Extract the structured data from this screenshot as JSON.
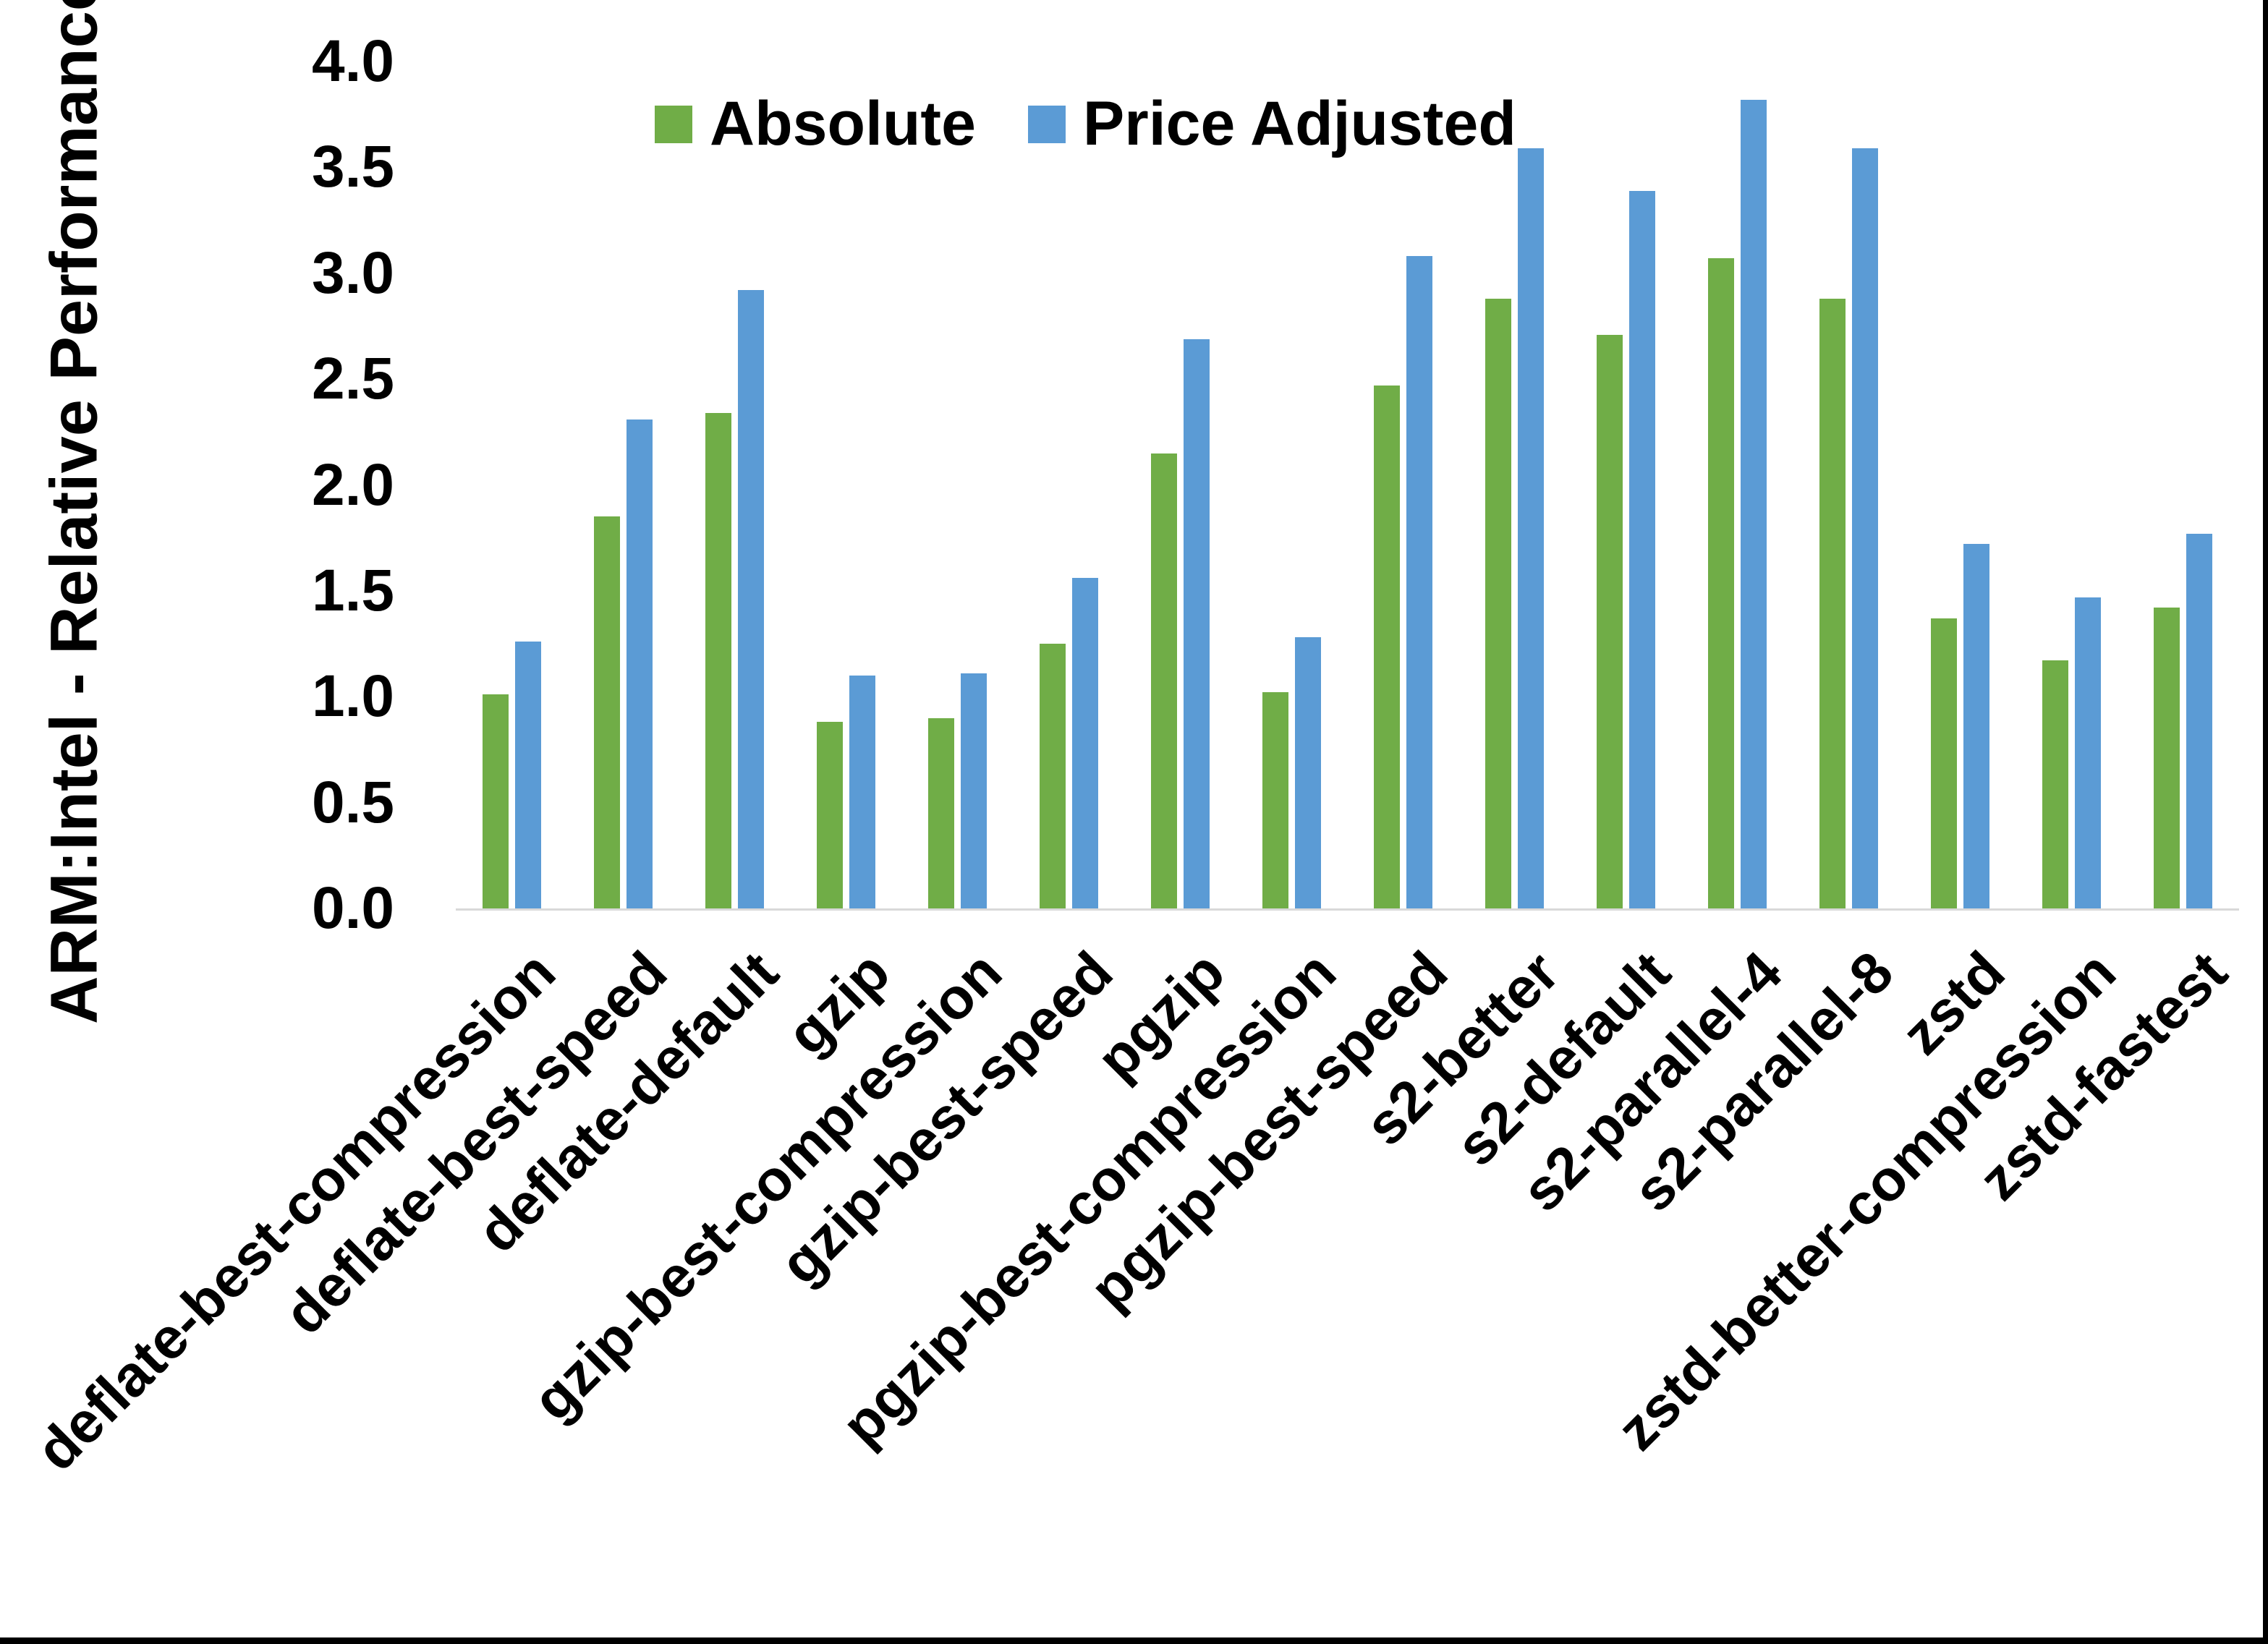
{
  "page": {
    "background": "#FFFFFF",
    "frame_color": "#000000"
  },
  "y_axis": {
    "title": "ARM:Intel - Relative Performance",
    "tick_labels": [
      "4.0",
      "3.5",
      "3.0",
      "2.5",
      "2.0",
      "1.5",
      "1.0",
      "0.5",
      "0.0"
    ]
  },
  "chart_data": {
    "type": "bar",
    "title": "",
    "xlabel": "",
    "ylabel": "ARM:Intel - Relative Performance",
    "ylim": [
      0.0,
      4.0
    ],
    "ytick_step": 0.5,
    "grid": false,
    "legend_position": "top-center",
    "axis_line_color": "#D9D9D9",
    "categories": [
      "deflate-best-compression",
      "deflate-best-speed",
      "deflate-default",
      "gzip",
      "gzip-best-compression",
      "gzip-best-speed",
      "pgzip",
      "pgzip-best-compression",
      "pgzip-best-speed",
      "s2-better",
      "s2-default",
      "s2-parallel-4",
      "s2-parallel-8",
      "zstd",
      "zstd-better-compression",
      "zstd-fastest"
    ],
    "series": [
      {
        "name": "Absolute",
        "color": "#70AD47",
        "values": [
          1.01,
          1.85,
          2.34,
          0.88,
          0.9,
          1.25,
          2.15,
          1.02,
          2.47,
          2.88,
          2.71,
          3.07,
          2.88,
          1.37,
          1.17,
          1.42
        ]
      },
      {
        "name": "Price Adjusted",
        "color": "#5B9BD5",
        "values": [
          1.26,
          2.31,
          2.92,
          1.1,
          1.11,
          1.56,
          2.69,
          1.28,
          3.08,
          3.59,
          3.39,
          3.82,
          3.59,
          1.72,
          1.47,
          1.77
        ]
      }
    ]
  }
}
